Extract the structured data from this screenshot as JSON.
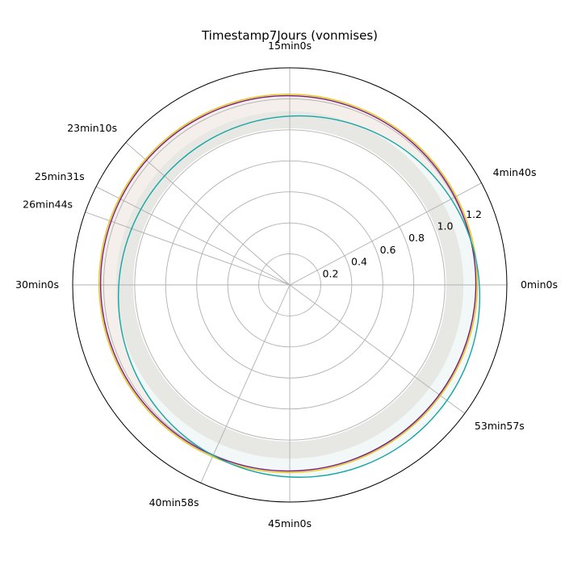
{
  "chart_data": {
    "type": "polar-line",
    "title": "Timestamp7Jours (vonmises)",
    "rlim": [
      0,
      1.4
    ],
    "r_ticks": [
      0.2,
      0.4,
      0.6,
      0.8,
      1.0,
      1.2
    ],
    "r_tick_labels": [
      "0.2",
      "0.4",
      "0.6",
      "0.8",
      "1.0",
      "1.2"
    ],
    "angular_ticks": [
      {
        "label": "0min0s",
        "minutes": 0
      },
      {
        "label": "4min40s",
        "minutes": 4.667
      },
      {
        "label": "15min0s",
        "minutes": 15
      },
      {
        "label": "23min10s",
        "minutes": 23.167
      },
      {
        "label": "25min31s",
        "minutes": 25.517
      },
      {
        "label": "26min44s",
        "minutes": 26.733
      },
      {
        "label": "30min0s",
        "minutes": 30
      },
      {
        "label": "40min58s",
        "minutes": 40.967
      },
      {
        "label": "45min0s",
        "minutes": 45
      },
      {
        "label": "53min57s",
        "minutes": 53.95
      }
    ],
    "period_minutes": 60,
    "grid": true,
    "series": [
      {
        "color": "#e6c619",
        "center": [
          -0.01,
          0.01
        ],
        "radius": 1.22,
        "fill": "#f2ede8"
      },
      {
        "color": "#7b1f7a",
        "center": [
          -0.01,
          0.01
        ],
        "radius": 1.21,
        "fill": "#f4eeeb"
      },
      {
        "color": "#17a5a5",
        "center": [
          0.06,
          -0.075
        ],
        "radius": 1.165,
        "fill": "#f2f8f8"
      }
    ],
    "inner_band": {
      "center": [
        0,
        0
      ],
      "radius_outer": 1.12,
      "radius_inner": 1.01,
      "fill": "#e7e7e3"
    }
  }
}
